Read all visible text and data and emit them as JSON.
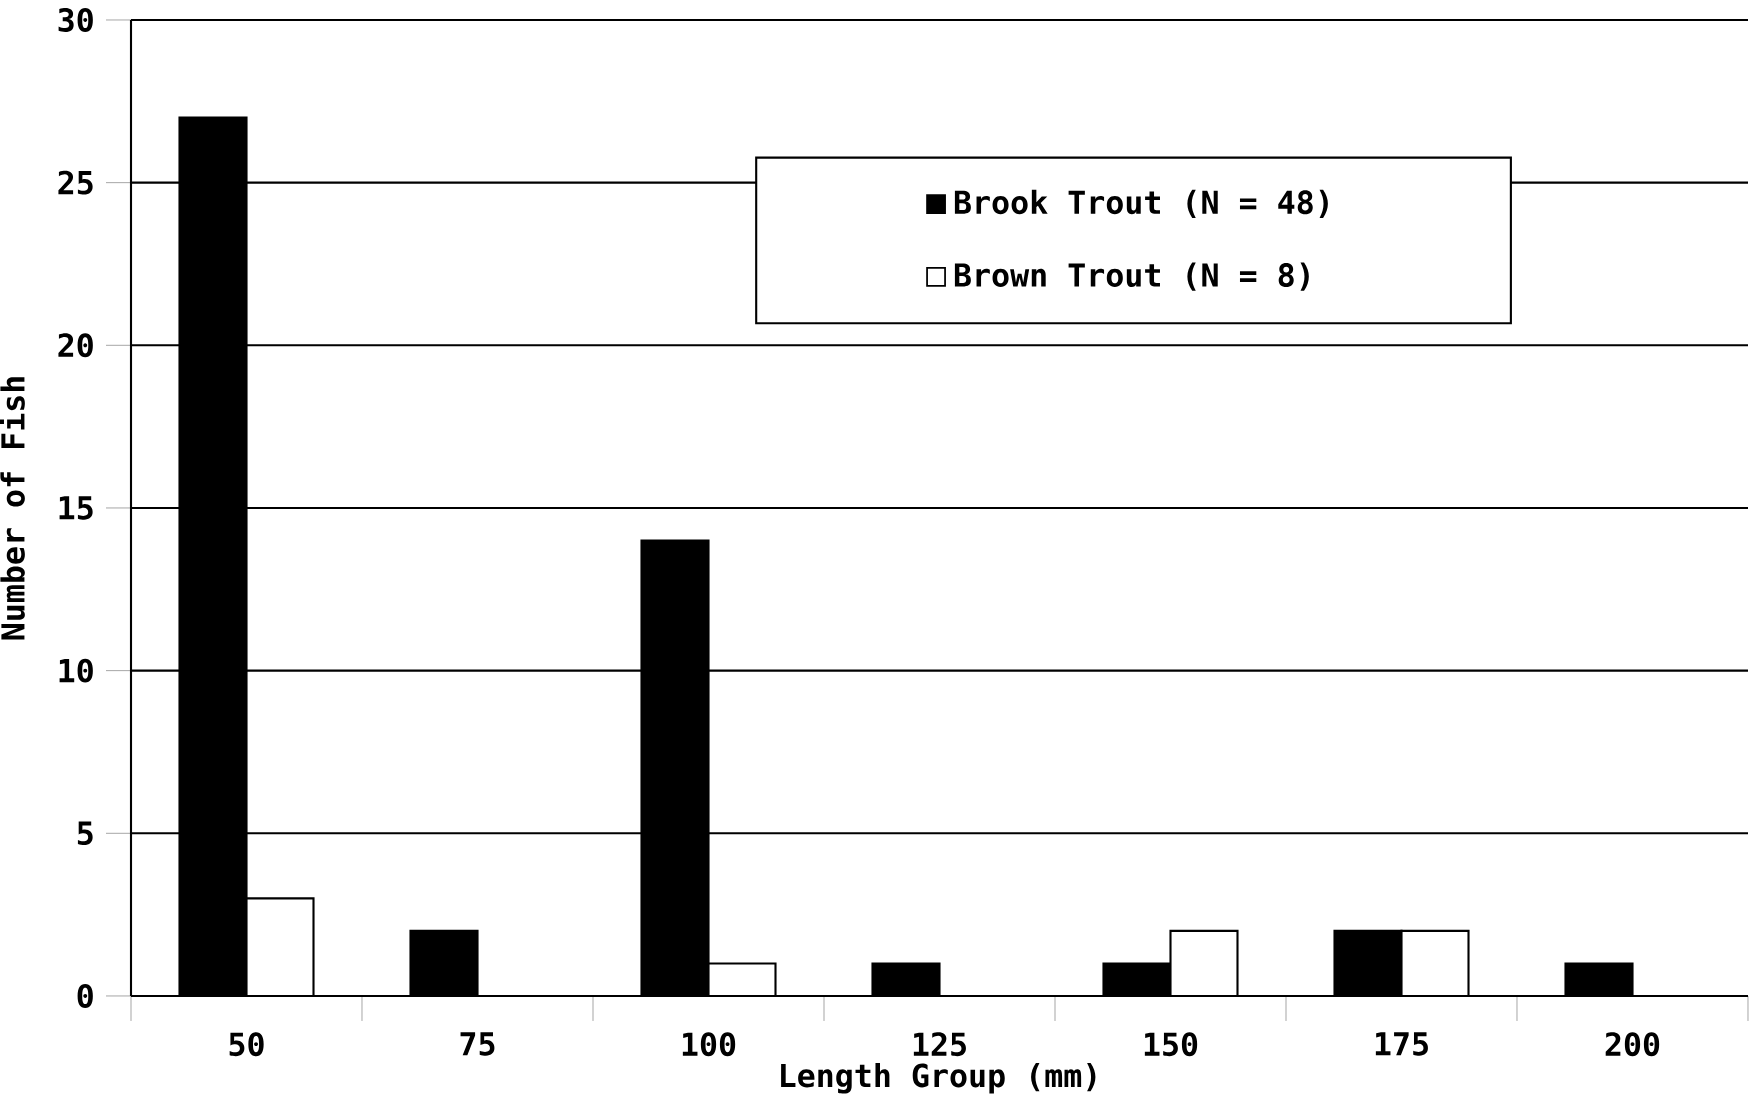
{
  "chart_data": {
    "type": "bar",
    "xlabel": "Length Group (mm)",
    "ylabel": "Number of Fish",
    "categories": [
      "50",
      "75",
      "100",
      "125",
      "150",
      "175",
      "200"
    ],
    "series": [
      {
        "name": "Brook Trout (N = 48)",
        "color": "#000000",
        "values": [
          27,
          2,
          14,
          1,
          1,
          2,
          1
        ]
      },
      {
        "name": "Brown Trout (N = 8)",
        "color": "#ffffff",
        "values": [
          3,
          null,
          1,
          null,
          2,
          2,
          null
        ]
      }
    ],
    "ylim": [
      0,
      30
    ],
    "yticks": [
      0,
      5,
      10,
      15,
      20,
      25,
      30
    ],
    "grid": "y",
    "legend": "top"
  }
}
